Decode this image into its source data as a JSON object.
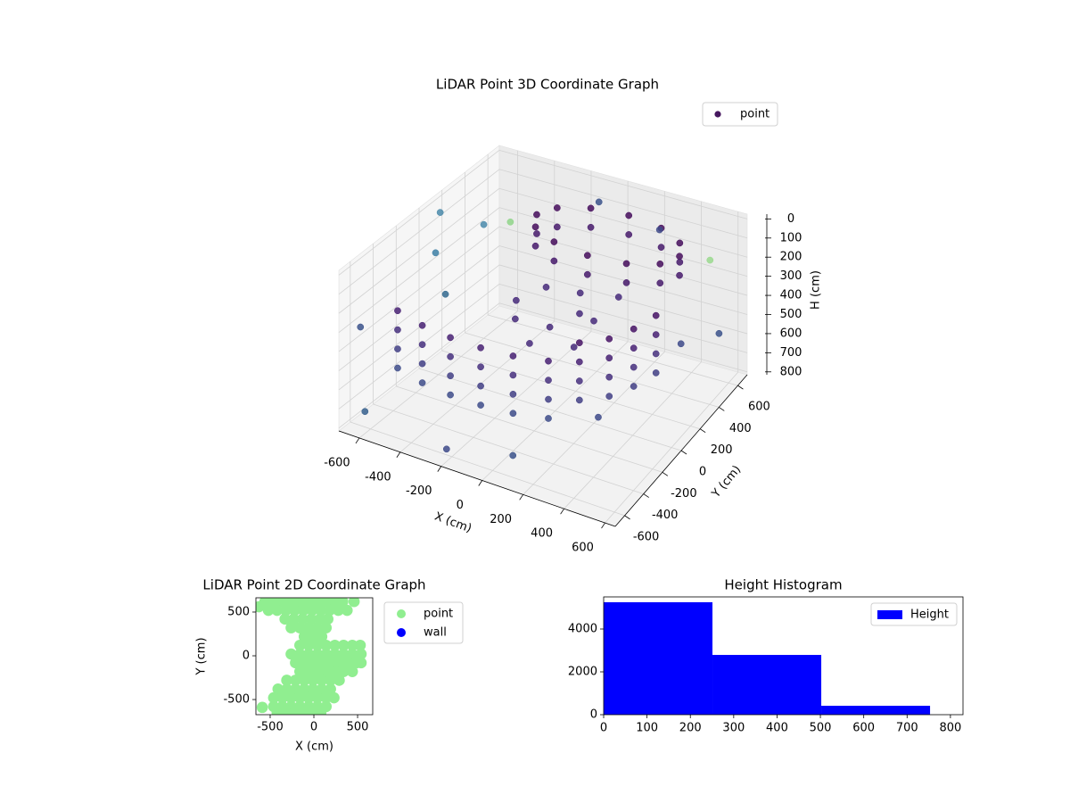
{
  "chart_data": [
    {
      "type": "scatter3d",
      "title": "LiDAR Point 3D Coordinate Graph",
      "xlabel": "X (cm)",
      "ylabel": "Y (cm)",
      "zlabel": "H (cm)",
      "xlim": [
        -700,
        650
      ],
      "ylim": [
        -700,
        700
      ],
      "zlim": [
        -25,
        815
      ],
      "zinvert": true,
      "xticks": [
        -600,
        -400,
        -200,
        0,
        200,
        400,
        600
      ],
      "yticks": [
        -600,
        -400,
        -200,
        0,
        200,
        400,
        600
      ],
      "zticks": [
        0,
        100,
        200,
        300,
        400,
        500,
        600,
        700,
        800
      ],
      "grid": true,
      "legend": "upper-right",
      "series": [
        {
          "name": "point",
          "color": "#46175f",
          "x": [
            -550,
            -550,
            -550,
            -550,
            -400,
            -400,
            -400,
            -400,
            -250,
            -250,
            -250,
            -250,
            -100,
            -100,
            -100,
            -100,
            50,
            50,
            50,
            50,
            200,
            200,
            200,
            200,
            320,
            320,
            320,
            320,
            420,
            420,
            420,
            420,
            480,
            480,
            480,
            480,
            520,
            520,
            520,
            520,
            430,
            430,
            379,
            379,
            240,
            240,
            50,
            50,
            -140,
            -140,
            -279,
            -279,
            -330,
            -330,
            -279,
            -279,
            -140,
            -140,
            50,
            50,
            240,
            240,
            379,
            379,
            -200,
            -100,
            0,
            100,
            200,
            -50,
            150,
            250,
            -150,
            50,
            -650,
            -600,
            -500,
            -650,
            -400,
            -100,
            200,
            500,
            600,
            550,
            -200,
            100,
            -450,
            -600,
            350
          ],
          "y": [
            -450,
            -450,
            -450,
            -450,
            -500,
            -500,
            -500,
            -500,
            -520,
            -520,
            -520,
            -520,
            -520,
            -520,
            -520,
            -520,
            -500,
            -500,
            -500,
            -500,
            -450,
            -450,
            -450,
            -450,
            -380,
            -380,
            -380,
            -380,
            -280,
            -280,
            -280,
            -280,
            -150,
            -150,
            -150,
            -150,
            0,
            0,
            0,
            0,
            420,
            420,
            520,
            520,
            593,
            593,
            620,
            620,
            593,
            593,
            520,
            520,
            420,
            420,
            320,
            320,
            247,
            247,
            220,
            220,
            247,
            247,
            320,
            320,
            0,
            100,
            -50,
            50,
            0,
            -150,
            -100,
            150,
            -100,
            150,
            -600,
            -650,
            -200,
            100,
            300,
            600,
            650,
            600,
            500,
            200,
            -650,
            -600,
            -200,
            400,
            -250
          ],
          "z": [
            250,
            350,
            450,
            550,
            250,
            350,
            450,
            550,
            250,
            350,
            450,
            550,
            250,
            350,
            450,
            550,
            250,
            350,
            450,
            550,
            250,
            350,
            450,
            550,
            150,
            250,
            350,
            450,
            150,
            250,
            350,
            450,
            150,
            250,
            350,
            450,
            150,
            250,
            350,
            450,
            100,
            200,
            100,
            200,
            100,
            200,
            100,
            200,
            100,
            200,
            100,
            200,
            100,
            200,
            100,
            200,
            100,
            200,
            100,
            200,
            100,
            200,
            100,
            200,
            300,
            250,
            350,
            300,
            280,
            400,
            380,
            220,
            330,
            260,
            300,
            700,
            50,
            30,
            100,
            60,
            150,
            200,
            500,
            400,
            750,
            700,
            250,
            220,
            600
          ],
          "colors": [
            "#482173",
            "#46307e",
            "#423f85",
            "#3e4c8a",
            "#482173",
            "#46307e",
            "#423f85",
            "#3e4c8a",
            "#482173",
            "#46307e",
            "#423f85",
            "#3e4c8a",
            "#482173",
            "#46307e",
            "#423f85",
            "#3e4c8a",
            "#482173",
            "#46307e",
            "#423f85",
            "#3e4c8a",
            "#482173",
            "#46307e",
            "#423f85",
            "#3e4c8a",
            "#471365",
            "#482173",
            "#46307e",
            "#423f85",
            "#471365",
            "#482173",
            "#46307e",
            "#423f85",
            "#471365",
            "#482173",
            "#46307e",
            "#423f85",
            "#471365",
            "#482173",
            "#46307e",
            "#423f85",
            "#450d5c",
            "#461a6b",
            "#450d5c",
            "#461a6b",
            "#450d5c",
            "#461a6b",
            "#450d5c",
            "#461a6b",
            "#450d5c",
            "#461a6b",
            "#450d5c",
            "#461a6b",
            "#450d5c",
            "#461a6b",
            "#450d5c",
            "#461a6b",
            "#450d5c",
            "#461a6b",
            "#450d5c",
            "#461a6b",
            "#450d5c",
            "#461a6b",
            "#450d5c",
            "#461a6b",
            "#472a7a",
            "#472a7a",
            "#472a7a",
            "#472a7a",
            "#472a7a",
            "#472a7a",
            "#472a7a",
            "#472a7a",
            "#472a7a",
            "#472a7a",
            "#3b528b",
            "#355f8d",
            "#3d7fa5",
            "#4a8aaa",
            "#90d58a",
            "#3b528b",
            "#3e4a89",
            "#9ad98e",
            "#3b528b",
            "#3e4a89",
            "#3e4a89",
            "#3b528b",
            "#31688e",
            "#4a8aaa",
            "#3e4a89"
          ]
        }
      ]
    },
    {
      "type": "scatter",
      "title": "LiDAR Point 2D Coordinate Graph",
      "xlabel": "X (cm)",
      "ylabel": "Y (cm)",
      "xlim": [
        -663,
        673
      ],
      "ylim": [
        -673,
        663
      ],
      "xticks": [
        -500,
        0,
        500
      ],
      "yticks": [
        -500,
        0,
        500
      ],
      "legend": "outside-right",
      "series": [
        {
          "name": "point",
          "color": "#90ee90",
          "x": [
            -560,
            -460,
            -360,
            -260,
            -160,
            -60,
            40,
            140,
            240,
            330,
            -520,
            -420,
            -320,
            -220,
            -120,
            -20,
            80,
            180,
            280,
            380,
            -330,
            -230,
            -130,
            -30,
            70,
            160,
            -260,
            -160,
            -60,
            40,
            140,
            -110,
            -10,
            90,
            -160,
            -60,
            40,
            140,
            240,
            340,
            440,
            530,
            -260,
            -160,
            -60,
            40,
            140,
            240,
            340,
            440,
            540,
            -210,
            -110,
            -10,
            90,
            190,
            290,
            390,
            490,
            540,
            -160,
            -60,
            40,
            140,
            240,
            340,
            440,
            -310,
            -210,
            -110,
            -10,
            90,
            190,
            290,
            -410,
            -310,
            -210,
            -110,
            -10,
            90,
            190,
            -460,
            -360,
            -260,
            -160,
            -60,
            40,
            140,
            230,
            -460,
            -360,
            -260,
            -160,
            -60,
            40,
            140,
            -420,
            -320,
            -220,
            -120,
            -20,
            80,
            -590,
            -630,
            460
          ],
          "y": [
            620,
            620,
            620,
            620,
            620,
            620,
            620,
            620,
            620,
            620,
            520,
            520,
            520,
            520,
            520,
            520,
            520,
            520,
            520,
            520,
            420,
            420,
            420,
            420,
            420,
            420,
            320,
            320,
            320,
            320,
            320,
            220,
            220,
            220,
            120,
            120,
            120,
            120,
            120,
            120,
            120,
            120,
            20,
            20,
            20,
            20,
            20,
            20,
            20,
            20,
            20,
            -80,
            -80,
            -80,
            -80,
            -80,
            -80,
            -80,
            -80,
            -80,
            -180,
            -180,
            -180,
            -180,
            -180,
            -180,
            -180,
            -280,
            -280,
            -280,
            -280,
            -280,
            -280,
            -280,
            -380,
            -380,
            -380,
            -380,
            -380,
            -380,
            -380,
            -480,
            -480,
            -480,
            -480,
            -480,
            -480,
            -480,
            -480,
            -580,
            -580,
            -580,
            -580,
            -580,
            -580,
            -580,
            -650,
            -650,
            -650,
            -650,
            -650,
            -650,
            -590,
            560,
            620
          ]
        },
        {
          "name": "wall",
          "color": "#0000ff",
          "x": [],
          "y": []
        }
      ]
    },
    {
      "type": "histogram",
      "title": "Height Histogram",
      "bins": [
        0,
        251,
        502,
        753
      ],
      "counts": [
        5250,
        2790,
        415
      ],
      "xlim": [
        0,
        829
      ],
      "ylim": [
        0,
        5500
      ],
      "xticks": [
        0,
        100,
        200,
        300,
        400,
        500,
        600,
        700,
        800
      ],
      "yticks": [
        0,
        2000,
        4000
      ],
      "legend": "upper-right",
      "series_name": "Height",
      "color": "#0000ff"
    }
  ]
}
